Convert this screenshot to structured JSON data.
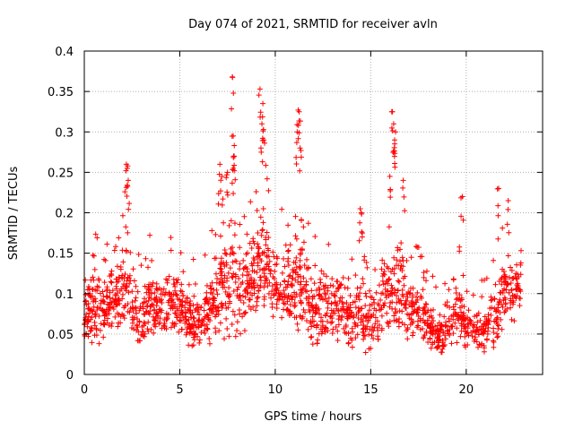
{
  "chart_data": {
    "type": "scatter",
    "title": "Day 074 of 2021, SRMTID for receiver avln",
    "xlabel": "GPS time / hours",
    "ylabel": "SRMTID / TECUs",
    "xlim": [
      0,
      24
    ],
    "ylim": [
      0,
      0.4
    ],
    "x_ticks": [
      0,
      5,
      10,
      15,
      20
    ],
    "x_tick_labels": [
      "0",
      "5",
      "10",
      "15",
      "20"
    ],
    "y_ticks": [
      0,
      0.05,
      0.1,
      0.15,
      0.2,
      0.25,
      0.3,
      0.35,
      0.4
    ],
    "y_tick_labels": [
      "0",
      "0.05",
      "0.1",
      "0.15",
      "0.2",
      "0.25",
      "0.3",
      "0.35",
      "0.4"
    ],
    "grid": true,
    "marker": "+",
    "colors": {
      "series": "#ff0000",
      "grid": "#b0b0b0",
      "axis": "#000000"
    },
    "series": [
      {
        "name": "SRMTID",
        "description": "Approximate envelope of the dense scatter (hour, typical low, typical high) plus notable peaks read from the figure",
        "envelope": [
          [
            0.0,
            0.04,
            0.1
          ],
          [
            0.5,
            0.03,
            0.14
          ],
          [
            1.0,
            0.04,
            0.12
          ],
          [
            1.5,
            0.05,
            0.13
          ],
          [
            2.0,
            0.05,
            0.16
          ],
          [
            2.5,
            0.04,
            0.13
          ],
          [
            3.0,
            0.03,
            0.1
          ],
          [
            3.5,
            0.04,
            0.14
          ],
          [
            4.0,
            0.04,
            0.12
          ],
          [
            4.5,
            0.04,
            0.14
          ],
          [
            5.0,
            0.04,
            0.13
          ],
          [
            5.5,
            0.03,
            0.11
          ],
          [
            6.0,
            0.03,
            0.1
          ],
          [
            6.5,
            0.03,
            0.12
          ],
          [
            7.0,
            0.04,
            0.17
          ],
          [
            7.5,
            0.04,
            0.2
          ],
          [
            8.0,
            0.03,
            0.18
          ],
          [
            8.5,
            0.05,
            0.16
          ],
          [
            9.0,
            0.06,
            0.2
          ],
          [
            9.5,
            0.07,
            0.22
          ],
          [
            10.0,
            0.06,
            0.16
          ],
          [
            10.5,
            0.05,
            0.17
          ],
          [
            11.0,
            0.05,
            0.18
          ],
          [
            11.5,
            0.04,
            0.17
          ],
          [
            12.0,
            0.03,
            0.13
          ],
          [
            12.5,
            0.04,
            0.14
          ],
          [
            13.0,
            0.04,
            0.13
          ],
          [
            13.5,
            0.04,
            0.12
          ],
          [
            14.0,
            0.03,
            0.11
          ],
          [
            14.5,
            0.03,
            0.12
          ],
          [
            15.0,
            0.02,
            0.1
          ],
          [
            15.5,
            0.04,
            0.13
          ],
          [
            16.0,
            0.05,
            0.16
          ],
          [
            16.5,
            0.04,
            0.15
          ],
          [
            17.0,
            0.04,
            0.12
          ],
          [
            17.5,
            0.04,
            0.12
          ],
          [
            18.0,
            0.03,
            0.1
          ],
          [
            18.5,
            0.02,
            0.07
          ],
          [
            19.0,
            0.02,
            0.08
          ],
          [
            19.5,
            0.03,
            0.13
          ],
          [
            20.0,
            0.03,
            0.09
          ],
          [
            20.5,
            0.03,
            0.08
          ],
          [
            21.0,
            0.02,
            0.08
          ],
          [
            21.5,
            0.03,
            0.12
          ],
          [
            22.0,
            0.05,
            0.16
          ],
          [
            22.5,
            0.06,
            0.15
          ],
          [
            22.9,
            0.07,
            0.14
          ]
        ],
        "peaks": [
          [
            2.2,
            0.26
          ],
          [
            2.25,
            0.255
          ],
          [
            2.3,
            0.24
          ],
          [
            7.1,
            0.26
          ],
          [
            7.2,
            0.245
          ],
          [
            7.5,
            0.25
          ],
          [
            7.75,
            0.368
          ],
          [
            7.8,
            0.295
          ],
          [
            7.85,
            0.27
          ],
          [
            7.8,
            0.255
          ],
          [
            9.2,
            0.353
          ],
          [
            9.35,
            0.335
          ],
          [
            9.3,
            0.31
          ],
          [
            9.4,
            0.29
          ],
          [
            11.2,
            0.327
          ],
          [
            11.25,
            0.325
          ],
          [
            11.15,
            0.3
          ],
          [
            11.3,
            0.28
          ],
          [
            14.45,
            0.205
          ],
          [
            14.5,
            0.2
          ],
          [
            16.1,
            0.325
          ],
          [
            16.2,
            0.31
          ],
          [
            16.3,
            0.3
          ],
          [
            16.25,
            0.29
          ],
          [
            16.0,
            0.245
          ],
          [
            16.7,
            0.24
          ],
          [
            19.8,
            0.22
          ],
          [
            21.7,
            0.23
          ],
          [
            22.2,
            0.215
          ]
        ]
      }
    ]
  }
}
